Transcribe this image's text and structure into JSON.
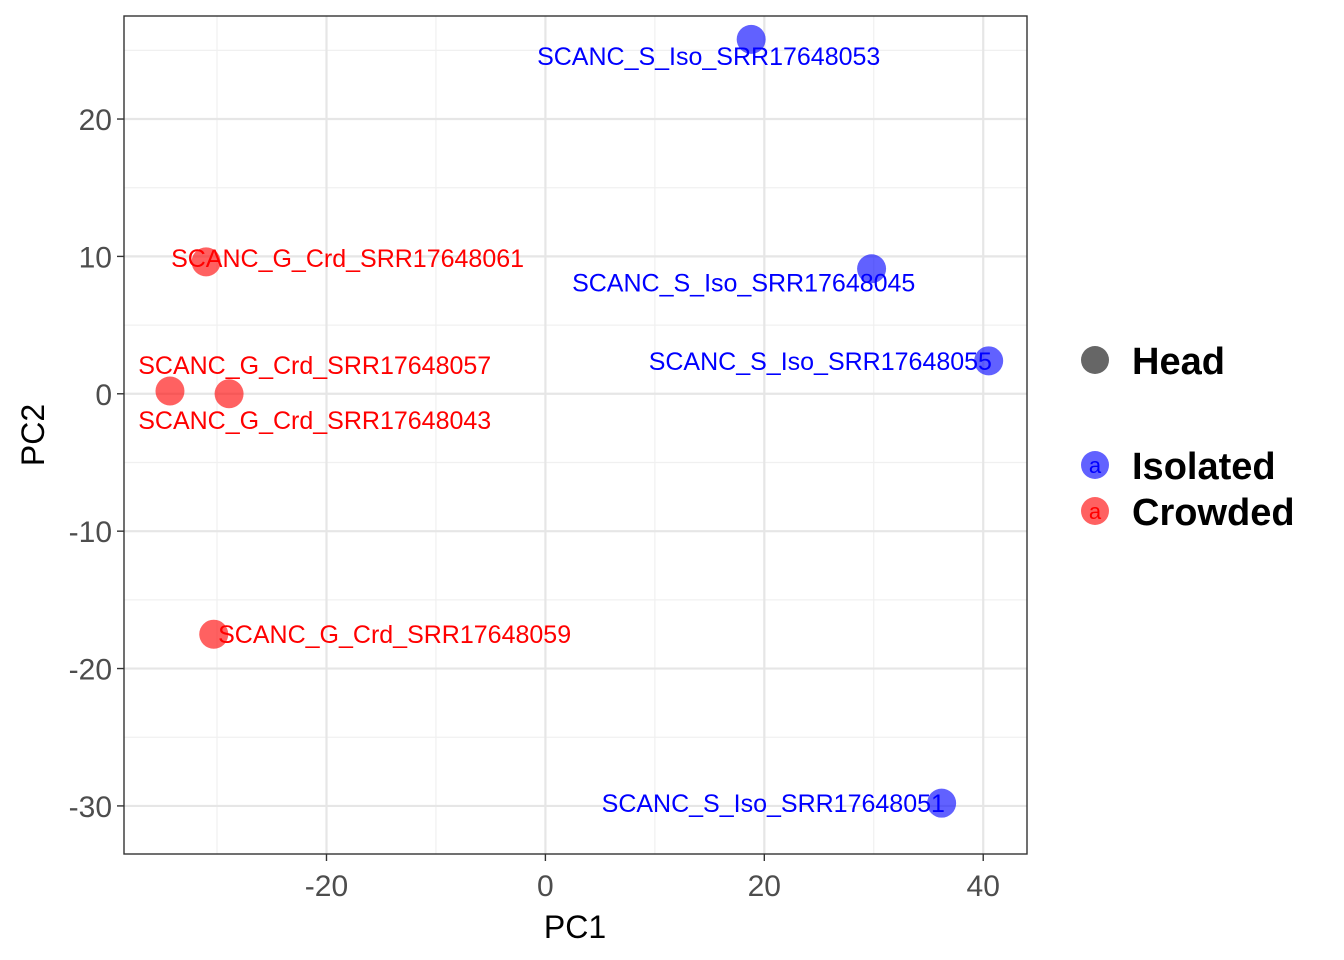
{
  "chart_data": {
    "type": "scatter",
    "xlabel": "PC1",
    "ylabel": "PC2",
    "xlim": [
      -38.5,
      44
    ],
    "ylim": [
      -33.5,
      27.5
    ],
    "x_ticks": [
      -20,
      0,
      20,
      40
    ],
    "y_ticks": [
      -30,
      -20,
      -10,
      0,
      10,
      20
    ],
    "grid": true,
    "legend_position": "right",
    "colors": {
      "Isolated": "#0000ff",
      "Crowded": "#ff0000"
    },
    "legend": {
      "shape_entries": [
        {
          "label": "Head",
          "color": "#666666"
        }
      ],
      "color_entries": [
        {
          "label": "Isolated",
          "color": "#0000ff",
          "glyph": "a"
        },
        {
          "label": "Crowded",
          "color": "#ff0000",
          "glyph": "a"
        }
      ]
    },
    "points": [
      {
        "label": "SCANC_S_Iso_SRR17648053",
        "group": "Isolated",
        "x": 18.8,
        "y": 25.8,
        "anchor": "end",
        "dx": 11.8,
        "dy": -1.2
      },
      {
        "label": "SCANC_S_Iso_SRR17648045",
        "group": "Isolated",
        "x": 29.8,
        "y": 9.1,
        "anchor": "end",
        "dx": 4,
        "dy": -1
      },
      {
        "label": "SCANC_S_Iso_SRR17648055",
        "group": "Isolated",
        "x": 40.5,
        "y": 2.4,
        "anchor": "end",
        "dx": 0.3,
        "dy": 0
      },
      {
        "label": "SCANC_S_Iso_SRR17648051",
        "group": "Isolated",
        "x": 36.2,
        "y": -29.8,
        "anchor": "end",
        "dx": 0.3,
        "dy": 0
      },
      {
        "label": "SCANC_G_Crd_SRR17648061",
        "group": "Crowded",
        "x": -31,
        "y": 9.6,
        "anchor": "start",
        "dx": -3.2,
        "dy": 0.3
      },
      {
        "label": "SCANC_G_Crd_SRR17648057",
        "group": "Crowded",
        "x": -34.3,
        "y": 0.2,
        "anchor": "start",
        "dx": -2.9,
        "dy": 1.9
      },
      {
        "label": "SCANC_G_Crd_SRR17648043",
        "group": "Crowded",
        "x": -28.9,
        "y": 0,
        "anchor": "start",
        "dx": -8.3,
        "dy": -1.9
      },
      {
        "label": "SCANC_G_Crd_SRR17648059",
        "group": "Crowded",
        "x": -30.3,
        "y": -17.5,
        "anchor": "start",
        "dx": 0.4,
        "dy": 0
      }
    ]
  }
}
